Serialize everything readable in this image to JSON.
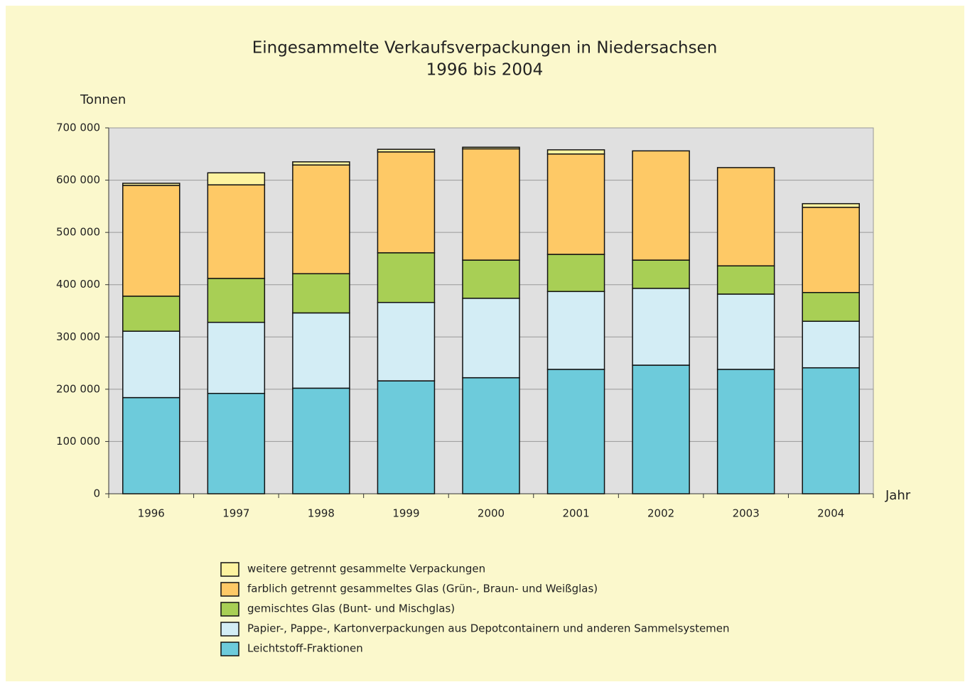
{
  "chart_data": {
    "type": "stacked_bar",
    "title": "Eingesammelte Verkaufsverpackungen in Niedersachsen",
    "subtitle": "1996 bis 2004",
    "y_label": "Tonnen",
    "x_label": "Jahr",
    "categories": [
      "1996",
      "1997",
      "1998",
      "1999",
      "2000",
      "2001",
      "2002",
      "2003",
      "2004"
    ],
    "series": [
      {
        "name": "Leichtstoff-Fraktionen",
        "color": "#6dcbdb",
        "values": [
          184000,
          192000,
          202000,
          216000,
          222000,
          238000,
          246000,
          238000,
          241000
        ]
      },
      {
        "name": "Papier-, Pappe-, Kartonverpackungen aus Depotcontainern und anderen Sammelsystemen",
        "color": "#d3edf5",
        "values": [
          127000,
          136000,
          144000,
          150000,
          152000,
          149000,
          147000,
          144000,
          89000
        ]
      },
      {
        "name": "gemischtes Glas (Bunt- und Mischglas)",
        "color": "#a8cf55",
        "values": [
          67000,
          84000,
          75000,
          95000,
          73000,
          71000,
          54000,
          54000,
          55000
        ]
      },
      {
        "name": "farblich getrennt gesammeltes Glas (Grün-, Braun- und Weißglas)",
        "color": "#fec966",
        "values": [
          212000,
          179000,
          208000,
          193000,
          213000,
          192000,
          209000,
          188000,
          163000
        ]
      },
      {
        "name": "weitere getrennt gesammelte Verpackungen",
        "color": "#fdf3a0",
        "values": [
          4000,
          23000,
          6000,
          5000,
          3000,
          8000,
          0,
          0,
          7000
        ]
      }
    ],
    "ylim": [
      0,
      700000
    ],
    "yticks": [
      0,
      {
        "value": 100000,
        "label": "100 000"
      },
      {
        "value": 200000,
        "label": "200 000"
      },
      {
        "value": 300000,
        "label": "300 000"
      },
      {
        "value": 400000,
        "label": "400 000"
      },
      {
        "value": 500000,
        "label": "500 000"
      },
      {
        "value": 600000,
        "label": "600 000"
      },
      {
        "value": 700000,
        "label": "700 000"
      }
    ],
    "grid": true
  }
}
